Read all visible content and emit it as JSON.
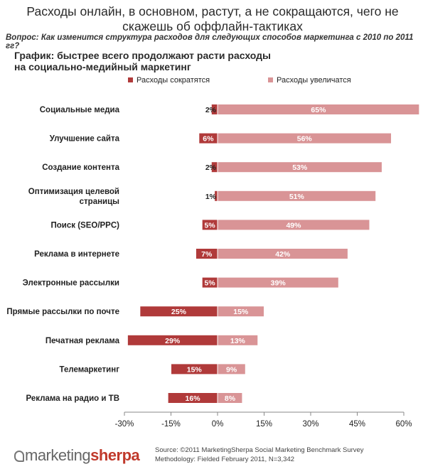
{
  "header": {
    "title": "Расходы онлайн, в основном, растут, а не сокращаются, чего не скажешь об оффлайн-тактиках",
    "question": "Вопрос: Как изменится структура расходов для следующих способов маркетинга с 2010 по 2011 гг?",
    "subtitle_line1": "График: быстрее всего продолжают расти расходы",
    "subtitle_line2": "на социально-медийный маркетинг"
  },
  "chart_data": {
    "type": "bar",
    "orientation": "horizontal-diverging",
    "categories": [
      "Социальные медиа",
      "Улучшение сайта",
      "Создание контента",
      "Оптимизация целевой страницы",
      "Поиск (SEO/PPC)",
      "Реклама в интернете",
      "Электронные рассылки",
      "Прямые рассылки по почте",
      "Печатная реклама",
      "Телемаркетинг",
      "Реклама на радио и ТВ"
    ],
    "series": [
      {
        "name": "Расходы сократятся",
        "color": "#b03a3a",
        "values": [
          -2,
          -6,
          -2,
          -1,
          -5,
          -7,
          -5,
          -25,
          -29,
          -15,
          -16
        ],
        "labels": [
          "2%",
          "6%",
          "2%",
          "1%",
          "5%",
          "7%",
          "5%",
          "25%",
          "29%",
          "15%",
          "16%"
        ]
      },
      {
        "name": "Расходы увеличатся",
        "color": "#d99496",
        "values": [
          65,
          56,
          53,
          51,
          49,
          42,
          39,
          15,
          13,
          9,
          8
        ],
        "labels": [
          "65%",
          "56%",
          "53%",
          "51%",
          "49%",
          "42%",
          "39%",
          "15%",
          "13%",
          "9%",
          "8%"
        ]
      }
    ],
    "xlim": [
      -30,
      60
    ],
    "xticks": [
      -30,
      -15,
      0,
      15,
      30,
      45,
      60
    ],
    "xtick_labels": [
      "-30%",
      "-15%",
      "0%",
      "15%",
      "30%",
      "45%",
      "60%"
    ],
    "legend": "top"
  },
  "footer": {
    "logo_part1": "marketing",
    "logo_part2": "sherpa",
    "source_line1": "Source: ©2011 MarketingSherpa Social Marketing Benchmark Survey",
    "source_line2": "Methodology: Fielded February 2011, N=3,342"
  }
}
